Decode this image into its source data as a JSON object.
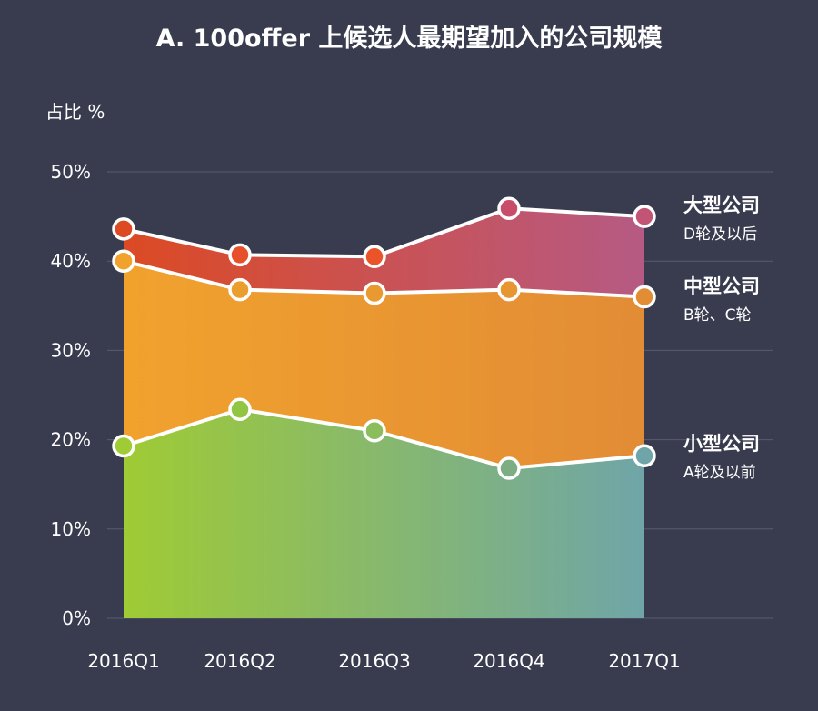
{
  "chart_data": {
    "type": "area",
    "title": "A. 100offer 上候选人最期望加入的公司规模",
    "ylabel": "占比 %",
    "xlabel": "",
    "ylim": [
      0,
      50
    ],
    "yticks": [
      "0%",
      "10%",
      "20%",
      "30%",
      "40%",
      "50%"
    ],
    "categories": [
      "2016Q1",
      "2016Q2",
      "2016Q3",
      "2016Q4",
      "2017Q1"
    ],
    "grid": true,
    "stacked": true,
    "legend_position": "right",
    "series": [
      {
        "name": "小型公司",
        "sub": "A轮及以前",
        "values": [
          19.3,
          23.4,
          21.0,
          16.8,
          18.2
        ],
        "color_start": "#9fcb34",
        "color_end": "#6fa5a8",
        "point_colors": [
          "#9fcb34",
          "#93c545",
          "#8bbd5c",
          "#7dae83",
          "#6fa5a8"
        ]
      },
      {
        "name": "中型公司",
        "sub": "B轮、C轮",
        "values": [
          20.7,
          13.4,
          15.4,
          20.0,
          17.8
        ],
        "color_start": "#f1a22d",
        "color_end": "#e28c36",
        "point_colors": [
          "#f1a22d",
          "#eb9e2e",
          "#e89a30",
          "#e69732",
          "#e28c36"
        ]
      },
      {
        "name": "大型公司",
        "sub": "D轮及以后",
        "values": [
          3.6,
          3.9,
          4.1,
          9.1,
          9.0
        ],
        "color_start": "#dc4a24",
        "color_end": "#b65a84",
        "point_colors": [
          "#dc4a24",
          "#e6502a",
          "#ea5428",
          "#c94d6b",
          "#c25575"
        ]
      }
    ]
  }
}
